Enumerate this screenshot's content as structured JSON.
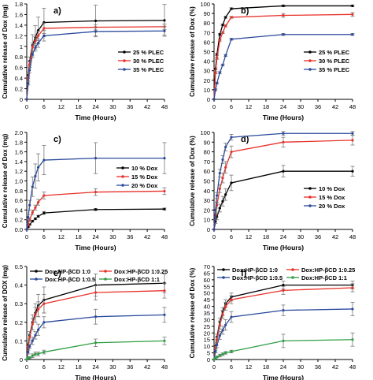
{
  "chart_data": [
    {
      "panel": "a)",
      "type": "line",
      "ylabel": "Cumulative release of Dox (mg)",
      "xlabel": "Time (Hours)",
      "xlim": [
        0,
        48
      ],
      "ylim": [
        0,
        1.8
      ],
      "xticks": [
        0,
        6,
        12,
        18,
        24,
        30,
        36,
        42,
        48
      ],
      "yticks": [
        0,
        0.2,
        0.4,
        0.6,
        0.8,
        1.0,
        1.2,
        1.4,
        1.6,
        1.8
      ],
      "ytick_labels": [
        "0",
        "0.2",
        "0.4",
        "0.6",
        "0.8",
        "1",
        "1.2",
        "1.4",
        "1.6",
        "1.8"
      ],
      "legend_position": "center-right",
      "x": [
        0,
        0.5,
        1,
        2,
        3,
        4,
        6,
        24,
        48
      ],
      "series": [
        {
          "name": "25 % PLEC",
          "color": "#000000",
          "values": [
            0,
            0.45,
            0.72,
            1.02,
            1.17,
            1.3,
            1.45,
            1.48,
            1.49
          ],
          "errors": [
            0,
            0.05,
            0.08,
            0.2,
            0.22,
            0.25,
            0.27,
            0.3,
            0.3
          ]
        },
        {
          "name": "30 % PLEC",
          "color": "#e8312a",
          "values": [
            0,
            0.4,
            0.66,
            0.98,
            1.1,
            1.2,
            1.34,
            1.36,
            1.37
          ],
          "errors": [
            0,
            0.04,
            0.06,
            0.08,
            0.08,
            0.09,
            0.1,
            0.05,
            0.05
          ]
        },
        {
          "name": "35 % PLEC",
          "color": "#2b4a9c",
          "values": [
            0,
            0.3,
            0.55,
            0.85,
            0.98,
            1.06,
            1.2,
            1.28,
            1.29
          ],
          "errors": [
            0,
            0.03,
            0.05,
            0.06,
            0.07,
            0.08,
            0.1,
            0.08,
            0.08
          ]
        }
      ]
    },
    {
      "panel": "b)",
      "type": "line",
      "ylabel": "Cumulative release of Dox (%)",
      "xlabel": "Time (Hours)",
      "xlim": [
        0,
        48
      ],
      "ylim": [
        0,
        100
      ],
      "xticks": [
        0,
        6,
        12,
        18,
        24,
        30,
        36,
        42,
        48
      ],
      "yticks": [
        0,
        10,
        20,
        30,
        40,
        50,
        60,
        70,
        80,
        90,
        100
      ],
      "legend_position": "center-right",
      "x": [
        0,
        0.5,
        1,
        2,
        3,
        4,
        6,
        24,
        48
      ],
      "series": [
        {
          "name": "25 % PLEC",
          "color": "#000000",
          "values": [
            0,
            32,
            47,
            68,
            78,
            86,
            95,
            98,
            98
          ],
          "errors": [
            0,
            1,
            1,
            1,
            1,
            1,
            1,
            1,
            1
          ]
        },
        {
          "name": "30 % PLEC",
          "color": "#e8312a",
          "values": [
            0,
            28,
            43,
            62,
            70,
            77,
            86,
            88,
            89
          ],
          "errors": [
            0,
            1,
            1,
            1,
            1,
            1,
            1,
            2,
            2
          ]
        },
        {
          "name": "35 % PLEC",
          "color": "#2b4a9c",
          "values": [
            0,
            10,
            17,
            28,
            36,
            46,
            63,
            68,
            68
          ],
          "errors": [
            0,
            1,
            1,
            1,
            1,
            1,
            1,
            1,
            1
          ]
        }
      ]
    },
    {
      "panel": "c)",
      "type": "line",
      "ylabel": "Cumulative release of Dox (mg)",
      "xlabel": "Time (Hours)",
      "xlim": [
        0,
        48
      ],
      "ylim": [
        0,
        2.0
      ],
      "xticks": [
        0,
        6,
        12,
        18,
        24,
        30,
        36,
        42,
        48
      ],
      "yticks": [
        0,
        0.2,
        0.4,
        0.6,
        0.8,
        1.0,
        1.2,
        1.4,
        1.6,
        1.8,
        2.0
      ],
      "ytick_labels": [
        "0.0",
        "0.2",
        "0.4",
        "0.6",
        "0.8",
        "1.0",
        "1.2",
        "1.4",
        "1.6",
        "1.8",
        "2.0"
      ],
      "legend_position": "center-right",
      "x": [
        0,
        0.5,
        1,
        2,
        3,
        4,
        6,
        24,
        48
      ],
      "series": [
        {
          "name": "10 % Dox",
          "color": "#000000",
          "values": [
            0,
            0.05,
            0.1,
            0.17,
            0.22,
            0.27,
            0.34,
            0.41,
            0.42
          ],
          "errors": [
            0,
            0.01,
            0.01,
            0.02,
            0.02,
            0.02,
            0.03,
            0.02,
            0.02
          ]
        },
        {
          "name": "15 % Dox",
          "color": "#e8312a",
          "values": [
            0,
            0.1,
            0.2,
            0.35,
            0.45,
            0.56,
            0.7,
            0.77,
            0.79
          ],
          "errors": [
            0,
            0.02,
            0.03,
            0.05,
            0.05,
            0.06,
            0.07,
            0.07,
            0.07
          ]
        },
        {
          "name": "20 % Dox",
          "color": "#2b4a9c",
          "values": [
            0,
            0.25,
            0.5,
            0.88,
            1.1,
            1.28,
            1.43,
            1.47,
            1.47
          ],
          "errors": [
            0,
            0.05,
            0.1,
            0.2,
            0.25,
            0.28,
            0.3,
            0.32,
            0.32
          ]
        }
      ]
    },
    {
      "panel": "d)",
      "type": "line",
      "ylabel": "Cumulative release of Dox (%)",
      "xlabel": "Time (Hours)",
      "xlim": [
        0,
        48
      ],
      "ylim": [
        0,
        100
      ],
      "xticks": [
        0,
        6,
        12,
        18,
        24,
        30,
        36,
        42,
        48
      ],
      "yticks": [
        0,
        10,
        20,
        30,
        40,
        50,
        60,
        70,
        80,
        90,
        100
      ],
      "legend_position": "center-right",
      "x": [
        0,
        0.5,
        1,
        2,
        3,
        4,
        6,
        24,
        48
      ],
      "series": [
        {
          "name": "10 % Dox",
          "color": "#000000",
          "values": [
            0,
            8,
            13,
            22,
            29,
            36,
            48,
            60,
            60
          ],
          "errors": [
            0,
            2,
            3,
            4,
            5,
            6,
            8,
            6,
            5
          ]
        },
        {
          "name": "15 % Dox",
          "color": "#e8312a",
          "values": [
            0,
            15,
            25,
            42,
            53,
            64,
            80,
            90,
            92
          ],
          "errors": [
            0,
            2,
            3,
            4,
            5,
            6,
            6,
            5,
            5
          ]
        },
        {
          "name": "20 % Dox",
          "color": "#2b4a9c",
          "values": [
            0,
            20,
            35,
            58,
            72,
            85,
            95,
            99,
            99
          ],
          "errors": [
            0,
            2,
            3,
            4,
            4,
            4,
            3,
            2,
            2
          ]
        }
      ]
    },
    {
      "panel": "e)",
      "type": "line",
      "ylabel": "Cumulative release of DOX (mg)",
      "xlabel": "Time (Hours)",
      "xlim": [
        0,
        48
      ],
      "ylim": [
        0,
        0.5
      ],
      "xticks": [
        0,
        6,
        12,
        18,
        24,
        30,
        36,
        42,
        48
      ],
      "yticks": [
        0,
        0.1,
        0.2,
        0.3,
        0.4,
        0.5
      ],
      "ytick_labels": [
        "0",
        "0.1",
        "0.2",
        "0.3",
        "0.4",
        "0.5"
      ],
      "legend_position": "top",
      "x": [
        0,
        0.5,
        1,
        2,
        3,
        4,
        6,
        24,
        48
      ],
      "series": [
        {
          "name": "Dox:HP-βCD 1:0",
          "color": "#000000",
          "values": [
            0,
            0.08,
            0.13,
            0.2,
            0.25,
            0.29,
            0.32,
            0.4,
            0.41
          ],
          "errors": [
            0,
            0.01,
            0.02,
            0.04,
            0.05,
            0.06,
            0.07,
            0.06,
            0.05
          ]
        },
        {
          "name": "Dox:HP-βCD 1:0.25",
          "color": "#e8312a",
          "values": [
            0,
            0.07,
            0.12,
            0.19,
            0.24,
            0.27,
            0.3,
            0.36,
            0.37
          ],
          "errors": [
            0,
            0.01,
            0.02,
            0.03,
            0.04,
            0.04,
            0.05,
            0.04,
            0.04
          ]
        },
        {
          "name": "Dox:HP-βCD 1:0.5",
          "color": "#2b4a9c",
          "values": [
            0,
            0.04,
            0.07,
            0.1,
            0.13,
            0.16,
            0.2,
            0.23,
            0.24
          ],
          "errors": [
            0,
            0.01,
            0.01,
            0.02,
            0.02,
            0.03,
            0.03,
            0.04,
            0.04
          ]
        },
        {
          "name": "Dox:HP-βCD 1:1",
          "color": "#2f9e44",
          "values": [
            0,
            0.01,
            0.01,
            0.02,
            0.03,
            0.03,
            0.04,
            0.09,
            0.1
          ],
          "errors": [
            0,
            0.005,
            0.005,
            0.01,
            0.01,
            0.01,
            0.01,
            0.02,
            0.02
          ]
        }
      ]
    },
    {
      "panel": "f)",
      "type": "line",
      "ylabel": "Cumulative release of Dox (%)",
      "xlabel": "Time (Hours)",
      "xlim": [
        0,
        48
      ],
      "ylim": [
        0,
        70
      ],
      "xticks": [
        0,
        6,
        12,
        18,
        24,
        30,
        36,
        42,
        48
      ],
      "yticks": [
        0,
        5,
        10,
        15,
        20,
        25,
        30,
        35,
        40,
        45,
        50,
        55,
        60,
        65,
        70
      ],
      "legend_position": "top",
      "x": [
        0,
        0.5,
        1,
        2,
        3,
        4,
        6,
        24,
        48
      ],
      "series": [
        {
          "name": "Dox:HP-βCD 1:0",
          "color": "#000000",
          "values": [
            0,
            10,
            17,
            28,
            36,
            42,
            47,
            56,
            56
          ],
          "errors": [
            0,
            1,
            2,
            3,
            3,
            3,
            3,
            3,
            3
          ]
        },
        {
          "name": "Dox:HP-βCD 1:0.25",
          "color": "#e8312a",
          "values": [
            0,
            9,
            15,
            26,
            34,
            40,
            45,
            52,
            54
          ],
          "errors": [
            0,
            1,
            2,
            3,
            3,
            3,
            3,
            3,
            3
          ]
        },
        {
          "name": "Dox:HP-βCD 1:0.5",
          "color": "#2b4a9c",
          "values": [
            0,
            6,
            11,
            18,
            22,
            26,
            32,
            37,
            38
          ],
          "errors": [
            0,
            1,
            2,
            3,
            3,
            4,
            4,
            4,
            5
          ]
        },
        {
          "name": "Dox:HP-βCD 1:1",
          "color": "#2f9e44",
          "values": [
            0,
            1,
            2,
            3,
            4,
            5,
            6,
            14,
            15
          ],
          "errors": [
            0,
            0.5,
            0.5,
            1,
            1,
            1,
            1,
            5,
            5
          ]
        }
      ]
    }
  ]
}
